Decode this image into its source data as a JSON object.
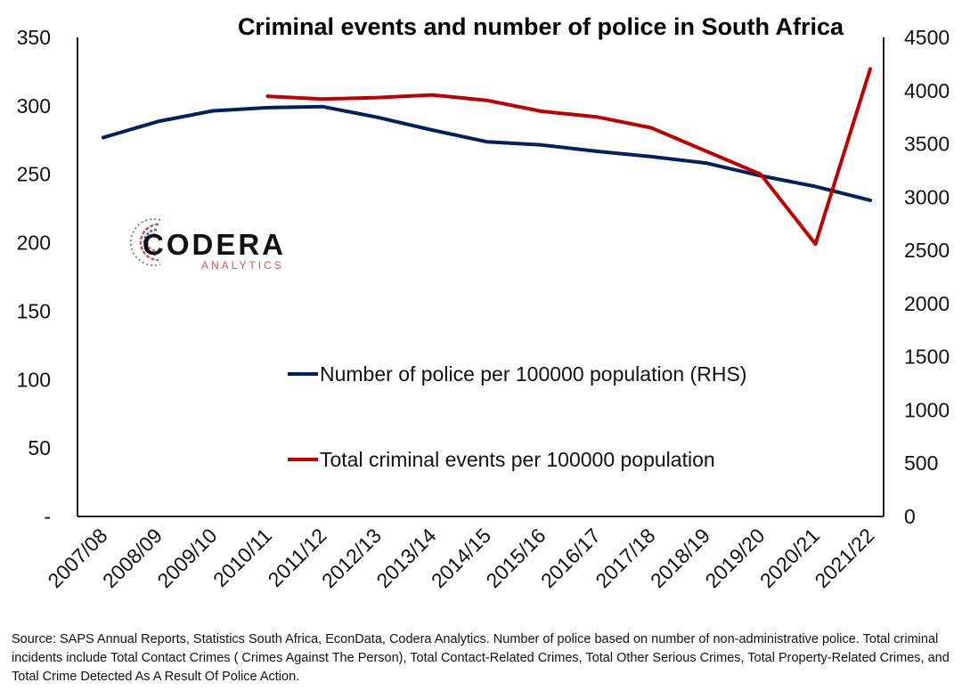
{
  "chart_data": {
    "type": "line",
    "title": "Criminal events and number of police in South Africa",
    "categories": [
      "2007/08",
      "2008/09",
      "2009/10",
      "2010/11",
      "2011/12",
      "2012/13",
      "2013/14",
      "2014/15",
      "2015/16",
      "2016/17",
      "2017/18",
      "2018/19",
      "2019/20",
      "2020/21",
      "2021/22"
    ],
    "y_left": {
      "ticks": [
        "350",
        "300",
        "250",
        "200",
        "150",
        "100",
        "50",
        "-"
      ],
      "range": [
        0,
        350
      ]
    },
    "y_right": {
      "ticks": [
        "4500",
        "4000",
        "3500",
        "3000",
        "2500",
        "2000",
        "1500",
        "1000",
        "500",
        "0"
      ],
      "range": [
        0,
        4500
      ]
    },
    "series": [
      {
        "name": "Number of police per 100000 population (RHS)",
        "axis": "right",
        "color": "#002060",
        "values": [
          3560,
          3710,
          3810,
          3840,
          3850,
          3750,
          3630,
          3520,
          3490,
          3430,
          3380,
          3320,
          3200,
          3100,
          2970
        ]
      },
      {
        "name": "Total criminal events per 100000 population",
        "axis": "left",
        "color": "#c00000",
        "values": [
          null,
          null,
          null,
          307,
          305,
          306,
          308,
          304,
          296,
          292,
          284,
          267,
          250,
          199,
          327
        ]
      }
    ],
    "legend_position": "center"
  },
  "logo": {
    "main": "CODERA",
    "sub": "ANALYTICS"
  },
  "source_text": "Source: SAPS Annual Reports, Statistics South Africa, EconData, Codera Analytics. Number of police based on number of non-administrative police. Total criminal incidents include Total Contact Crimes ( Crimes Against The  Person), Total Contact-Related Crimes, Total Other Serious Crimes, Total Property-Related Crimes, and Total Crime Detected As A Result Of Police Action.",
  "colors": {
    "police": "#002060",
    "crime": "#c00000"
  }
}
